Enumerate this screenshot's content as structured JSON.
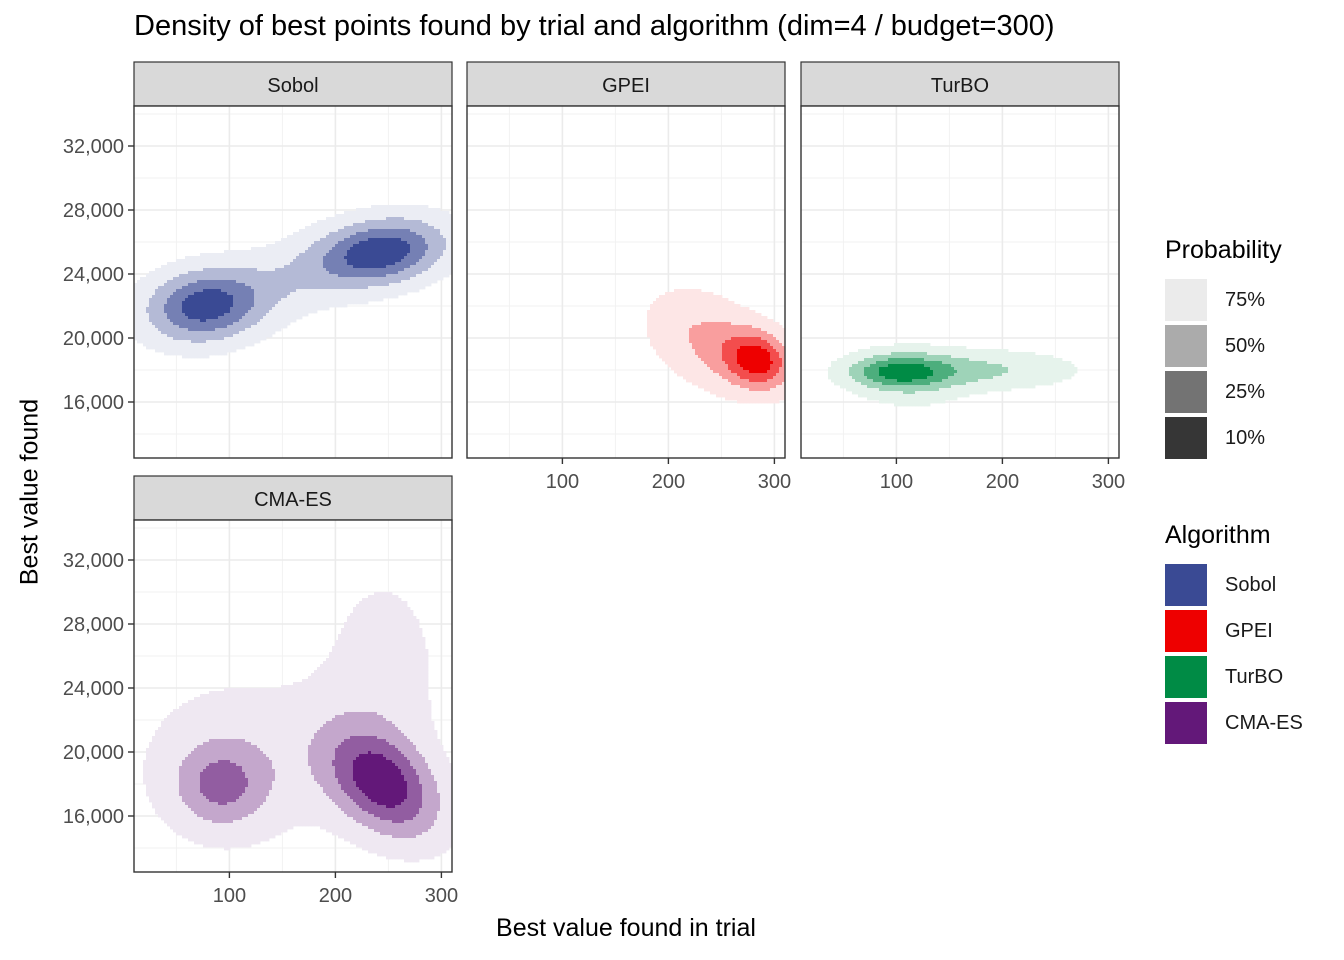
{
  "chart_data": {
    "type": "density2d-facet",
    "title": "Density of best points found by trial and algorithm (dim=4 / budget=300)",
    "xlabel": "Best value found in trial",
    "ylabel": "Best value found",
    "xlim": [
      10,
      310
    ],
    "ylim": [
      12500,
      34500
    ],
    "x_ticks": [
      100,
      200,
      300
    ],
    "x_tick_labels": [
      "100",
      "200",
      "300"
    ],
    "y_ticks": [
      16000,
      20000,
      24000,
      28000,
      32000
    ],
    "y_tick_labels": [
      "16,000",
      "20,000",
      "24,000",
      "28,000",
      "32,000"
    ],
    "grid": true,
    "legend_position": "right",
    "probability_levels": [
      "75%",
      "50%",
      "25%",
      "10%"
    ],
    "probability_colors": [
      "#ebebeb",
      "#ababab",
      "#737373",
      "#363636"
    ],
    "algorithms": [
      {
        "name": "Sobol",
        "color": "#3a4a94"
      },
      {
        "name": "GPEI",
        "color": "#ee0000"
      },
      {
        "name": "TurBO",
        "color": "#008b45"
      },
      {
        "name": "CMA-ES",
        "color": "#631879"
      }
    ],
    "panels": [
      {
        "label": "Sobol",
        "blobs": [
          {
            "x": 75,
            "y": 22000,
            "sx": 38,
            "sy": 1600,
            "rho": 0.1,
            "w": 1.0
          },
          {
            "x": 245,
            "y": 25400,
            "sx": 42,
            "sy": 1450,
            "rho": 0.2,
            "w": 1.05
          },
          {
            "x": 160,
            "y": 23700,
            "sx": 75,
            "sy": 2200,
            "rho": 0.6,
            "w": 0.35
          }
        ]
      },
      {
        "label": "GPEI",
        "blobs": [
          {
            "x": 285,
            "y": 18600,
            "sx": 22,
            "sy": 1250,
            "rho": -0.15,
            "w": 1.0
          },
          {
            "x": 238,
            "y": 19800,
            "sx": 40,
            "sy": 2200,
            "rho": -0.35,
            "w": 0.5
          }
        ]
      },
      {
        "label": "TurBO",
        "blobs": [
          {
            "x": 100,
            "y": 17900,
            "sx": 33,
            "sy": 750,
            "rho": 0.0,
            "w": 1.0
          },
          {
            "x": 185,
            "y": 18000,
            "sx": 60,
            "sy": 850,
            "rho": 0.0,
            "w": 0.55
          },
          {
            "x": 115,
            "y": 17300,
            "sx": 38,
            "sy": 1500,
            "rho": 0.0,
            "w": 0.3
          }
        ]
      },
      {
        "label": "CMA-ES",
        "blobs": [
          {
            "x": 245,
            "y": 18000,
            "sx": 38,
            "sy": 2400,
            "rho": -0.4,
            "w": 1.0
          },
          {
            "x": 92,
            "y": 17900,
            "sx": 30,
            "sy": 1800,
            "rho": 0.0,
            "w": 0.55
          },
          {
            "x": 245,
            "y": 25000,
            "sx": 42,
            "sy": 5000,
            "rho": 0.0,
            "w": 0.25
          },
          {
            "x": 110,
            "y": 19500,
            "sx": 70,
            "sy": 3800,
            "rho": 0.0,
            "w": 0.3
          }
        ]
      }
    ]
  }
}
